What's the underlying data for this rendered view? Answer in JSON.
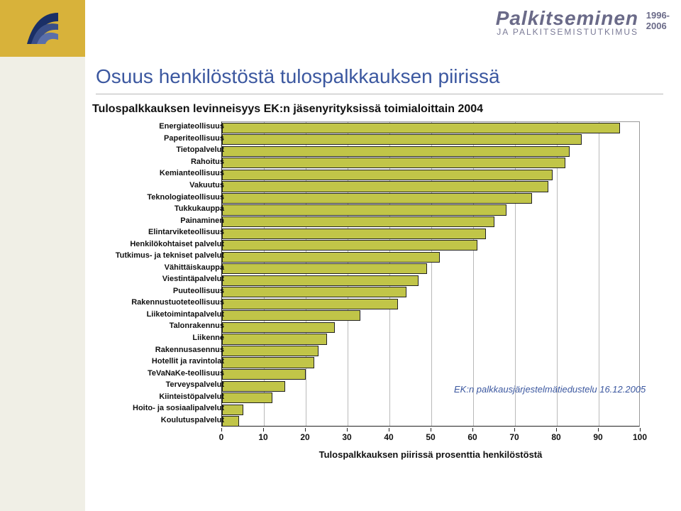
{
  "header": {
    "banner_title": "Palkitseminen",
    "banner_sub": "JA PALKITSEMISTUTKIMUS",
    "years": "1996-\n2006"
  },
  "title": "Osuus henkilöstöstä tulospalkkauksen piirissä",
  "chart": {
    "type": "bar",
    "orientation": "horizontal",
    "title": "Tulospalkkauksen levinneisyys EK:n jäsenyrityksissä toimialoittain 2004",
    "xaxis_title": "Tulospalkkauksen piirissä prosenttia henkilöstöstä",
    "xlim": [
      0,
      100
    ],
    "xtick_step": 10,
    "bar_color": "#c1c548",
    "bar_border_color": "#222222",
    "grid_color": "#b9b9b9",
    "plot_border_color": "#222222",
    "label_font_size": 11,
    "tick_font_size": 12,
    "title_font_size": 16,
    "background_color": "#ffffff",
    "categories": [
      "Energiateollisuus",
      "Paperiteollisuus",
      "Tietopalvelut",
      "Rahoitus",
      "Kemianteollisuus",
      "Vakuutus",
      "Teknologiateollisuus",
      "Tukkukauppa",
      "Painaminen",
      "Elintarviketeollisuus",
      "Henkilökohtaiset palvelut",
      "Tutkimus- ja tekniset palvelut",
      "Vähittäiskauppa",
      "Viestintäpalvelut",
      "Puuteollisuus",
      "Rakennustuoteteollisuus",
      "Liiketoimintapalvelut",
      "Talonrakennus",
      "Liikenne",
      "Rakennusasennus",
      "Hotellit ja ravintolat",
      "TeVaNaKe-teollisuus",
      "Terveyspalvelut",
      "Kiinteistöpalvelut",
      "Hoito- ja sosiaalipalvelut",
      "Koulutuspalvelut"
    ],
    "values": [
      95,
      86,
      83,
      82,
      79,
      78,
      74,
      68,
      65,
      63,
      61,
      52,
      49,
      47,
      44,
      42,
      33,
      27,
      25,
      23,
      22,
      20,
      15,
      12,
      5,
      4
    ]
  },
  "source_note": "EK:n palkkausjärjestelmätiedustelu 16.12.2005",
  "colors": {
    "title_text": "#3c58a0",
    "banner_text": "#6a6a88",
    "left_col_bg": "#f0efe6",
    "logo_bg": "#d8b23a"
  }
}
